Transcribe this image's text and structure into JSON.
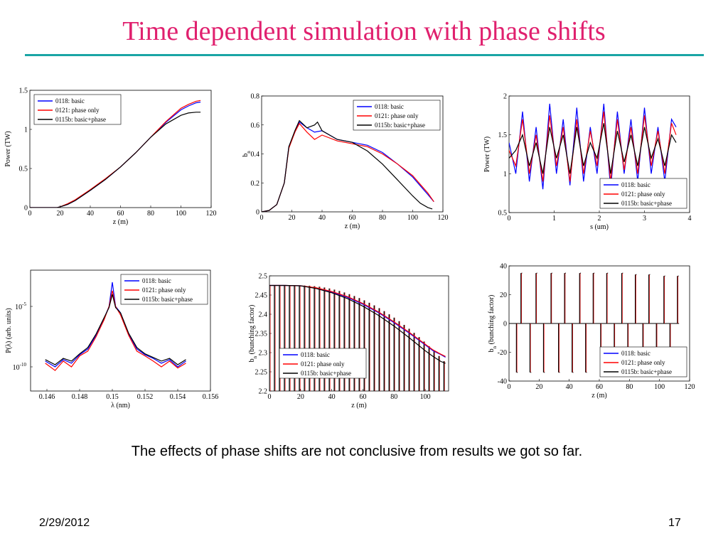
{
  "slide": {
    "title": "Time dependent simulation with phase shifts",
    "caption": "The effects of phase shifts are not conclusive from results we got so far.",
    "date": "2/29/2012",
    "page": "17"
  },
  "colors": {
    "title": "#e0206e",
    "rule": "#1aa5a5",
    "basic": "#0000ff",
    "phase_only": "#ff0000",
    "basic_phase": "#000000"
  },
  "legend_entries": [
    "0118: basic",
    "0121: phase only",
    "0115b: basic+phase"
  ],
  "chart_data": [
    {
      "id": "power-vs-z",
      "type": "line",
      "xlabel": "z (m)",
      "ylabel": "Power (TW)",
      "xlim": [
        0,
        120
      ],
      "ylim": [
        0,
        1.5
      ],
      "xticks": [
        "0",
        "20",
        "40",
        "60",
        "80",
        "100",
        "120"
      ],
      "yticks": [
        "0",
        "0.5",
        "1",
        "1.5"
      ],
      "legend_position": "top-left",
      "series": [
        {
          "name": "0118: basic",
          "color": "#0000ff",
          "x": [
            0,
            10,
            18,
            20,
            25,
            30,
            40,
            50,
            60,
            70,
            80,
            90,
            100,
            105,
            110,
            113
          ],
          "y": [
            0,
            0,
            0,
            0.01,
            0.04,
            0.09,
            0.22,
            0.36,
            0.52,
            0.7,
            0.9,
            1.09,
            1.25,
            1.3,
            1.34,
            1.35
          ]
        },
        {
          "name": "0121: phase only",
          "color": "#ff0000",
          "x": [
            0,
            10,
            18,
            20,
            25,
            30,
            40,
            50,
            60,
            70,
            80,
            90,
            100,
            105,
            110,
            113
          ],
          "y": [
            0,
            0,
            0,
            0.01,
            0.05,
            0.1,
            0.23,
            0.37,
            0.52,
            0.7,
            0.9,
            1.1,
            1.27,
            1.32,
            1.36,
            1.37
          ]
        },
        {
          "name": "0115b: basic+phase",
          "color": "#000000",
          "x": [
            0,
            10,
            18,
            20,
            25,
            30,
            40,
            50,
            60,
            70,
            80,
            90,
            100,
            105,
            110,
            113
          ],
          "y": [
            0,
            0,
            0,
            0.01,
            0.04,
            0.09,
            0.22,
            0.36,
            0.52,
            0.7,
            0.9,
            1.07,
            1.18,
            1.21,
            1.22,
            1.22
          ]
        }
      ]
    },
    {
      "id": "bunching-vs-z",
      "type": "line",
      "xlabel": "z (m)",
      "ylabel": "b",
      "ylabel_subscript": "n",
      "xlim": [
        0,
        120
      ],
      "ylim": [
        0,
        0.8
      ],
      "xticks": [
        "0",
        "20",
        "40",
        "60",
        "80",
        "100",
        "120"
      ],
      "yticks": [
        "0",
        "0.2",
        "0.4",
        "0.6",
        "0.8"
      ],
      "legend_position": "top-right",
      "series": [
        {
          "name": "0118: basic",
          "color": "#0000ff",
          "x": [
            0,
            5,
            10,
            15,
            18,
            22,
            25,
            30,
            35,
            40,
            50,
            60,
            70,
            80,
            90,
            100,
            105,
            110,
            114
          ],
          "y": [
            0,
            0.01,
            0.05,
            0.2,
            0.45,
            0.55,
            0.62,
            0.58,
            0.55,
            0.56,
            0.5,
            0.48,
            0.46,
            0.41,
            0.33,
            0.24,
            0.18,
            0.12,
            0.07
          ]
        },
        {
          "name": "0121: phase only",
          "color": "#ff0000",
          "x": [
            0,
            5,
            10,
            15,
            18,
            22,
            25,
            30,
            35,
            40,
            50,
            60,
            70,
            80,
            90,
            100,
            105,
            110,
            114
          ],
          "y": [
            0,
            0.01,
            0.05,
            0.2,
            0.44,
            0.55,
            0.61,
            0.55,
            0.5,
            0.53,
            0.49,
            0.47,
            0.45,
            0.4,
            0.33,
            0.25,
            0.19,
            0.13,
            0.07
          ]
        },
        {
          "name": "0115b: basic+phase",
          "color": "#000000",
          "x": [
            0,
            5,
            10,
            15,
            18,
            22,
            25,
            30,
            35,
            37,
            40,
            50,
            60,
            70,
            80,
            90,
            100,
            105,
            110,
            113
          ],
          "y": [
            0,
            0.01,
            0.05,
            0.2,
            0.45,
            0.56,
            0.63,
            0.58,
            0.6,
            0.62,
            0.56,
            0.5,
            0.48,
            0.42,
            0.33,
            0.22,
            0.11,
            0.06,
            0.03,
            0.02
          ]
        }
      ]
    },
    {
      "id": "power-vs-s",
      "type": "line",
      "xlabel": "s (um)",
      "ylabel": "Power (TW)",
      "xlim": [
        0,
        4
      ],
      "ylim": [
        0.5,
        2
      ],
      "xticks": [
        "0",
        "1",
        "2",
        "3",
        "4"
      ],
      "yticks": [
        "0.5",
        "1",
        "1.5",
        "2"
      ],
      "legend_position": "bottom-right",
      "series": [
        {
          "name": "0118: basic",
          "color": "#0000ff",
          "x": [
            0,
            0.15,
            0.3,
            0.45,
            0.6,
            0.75,
            0.9,
            1.05,
            1.2,
            1.35,
            1.5,
            1.65,
            1.8,
            1.95,
            2.1,
            2.25,
            2.4,
            2.55,
            2.7,
            2.85,
            3.0,
            3.15,
            3.3,
            3.45,
            3.6,
            3.7
          ],
          "y": [
            1.4,
            1.0,
            1.8,
            0.9,
            1.6,
            0.8,
            1.9,
            1.0,
            1.7,
            0.85,
            1.85,
            0.9,
            1.6,
            1.0,
            1.9,
            0.8,
            1.8,
            1.0,
            1.7,
            0.9,
            1.85,
            1.0,
            1.6,
            0.9,
            1.7,
            1.6
          ]
        },
        {
          "name": "0121: phase only",
          "color": "#ff0000",
          "x": [
            0,
            0.15,
            0.3,
            0.45,
            0.6,
            0.75,
            0.9,
            1.05,
            1.2,
            1.35,
            1.5,
            1.65,
            1.8,
            1.95,
            2.1,
            2.25,
            2.4,
            2.55,
            2.7,
            2.85,
            3.0,
            3.15,
            3.3,
            3.45,
            3.6,
            3.7
          ],
          "y": [
            1.3,
            1.1,
            1.7,
            1.0,
            1.5,
            0.9,
            1.75,
            1.1,
            1.6,
            0.9,
            1.7,
            1.0,
            1.55,
            1.1,
            1.8,
            0.9,
            1.7,
            1.05,
            1.6,
            1.0,
            1.75,
            1.1,
            1.55,
            1.0,
            1.65,
            1.5
          ]
        },
        {
          "name": "0115b: basic+phase",
          "color": "#000000",
          "x": [
            0,
            0.15,
            0.3,
            0.45,
            0.6,
            0.75,
            0.9,
            1.05,
            1.2,
            1.35,
            1.5,
            1.65,
            1.8,
            1.95,
            2.1,
            2.25,
            2.4,
            2.55,
            2.7,
            2.85,
            3.0,
            3.15,
            3.3,
            3.45,
            3.6,
            3.7
          ],
          "y": [
            1.2,
            1.3,
            1.5,
            1.1,
            1.4,
            1.0,
            1.6,
            1.2,
            1.5,
            1.0,
            1.6,
            1.1,
            1.4,
            1.2,
            1.65,
            1.0,
            1.55,
            1.15,
            1.5,
            1.1,
            1.6,
            1.2,
            1.45,
            1.1,
            1.5,
            1.4
          ]
        }
      ]
    },
    {
      "id": "spectrum",
      "type": "line",
      "xlabel": "λ (nm)",
      "ylabel": "P(λ) (arb. units)",
      "yscale": "log",
      "xlim": [
        0.145,
        0.156
      ],
      "ylim": [
        1e-12,
        0.01
      ],
      "xticks": [
        "0.146",
        "0.148",
        "0.15",
        "0.152",
        "0.154",
        "0.156"
      ],
      "yticks": [
        {
          "base": "10",
          "exp": "-5",
          "value": 1e-05
        },
        {
          "base": "10",
          "exp": "-10",
          "value": 1e-10
        }
      ],
      "legend_position": "top-right",
      "series": [
        {
          "name": "0118: basic",
          "color": "#0000ff",
          "x": [
            0.1459,
            0.1465,
            0.147,
            0.1475,
            0.148,
            0.1485,
            0.149,
            0.1495,
            0.1498,
            0.15,
            0.1502,
            0.1505,
            0.151,
            0.1515,
            0.152,
            0.1525,
            0.153,
            0.1535,
            0.154,
            0.1545
          ],
          "y": [
            3e-10,
            1e-10,
            4e-10,
            2e-10,
            1e-09,
            3e-09,
            4e-08,
            1e-06,
            1e-05,
            0.001,
            1e-05,
            3e-06,
            5e-08,
            3e-09,
            1e-09,
            5e-10,
            2e-10,
            4e-10,
            1e-10,
            3e-10
          ]
        },
        {
          "name": "0121: phase only",
          "color": "#ff0000",
          "x": [
            0.1459,
            0.1465,
            0.147,
            0.1475,
            0.148,
            0.1485,
            0.149,
            0.1495,
            0.1498,
            0.15,
            0.1502,
            0.1505,
            0.151,
            0.1515,
            0.152,
            0.1525,
            0.153,
            0.1535,
            0.154,
            0.1545
          ],
          "y": [
            2e-10,
            5e-11,
            3e-10,
            1e-10,
            8e-10,
            2e-09,
            3e-08,
            8e-07,
            1e-05,
            0.0002,
            1e-05,
            2e-06,
            4e-08,
            2e-09,
            8e-10,
            3e-10,
            1e-10,
            3e-10,
            8e-11,
            2e-10
          ]
        },
        {
          "name": "0115b: basic+phase",
          "color": "#000000",
          "x": [
            0.1459,
            0.1465,
            0.147,
            0.1475,
            0.148,
            0.1485,
            0.149,
            0.1495,
            0.1498,
            0.15,
            0.1502,
            0.1505,
            0.151,
            0.1515,
            0.152,
            0.1525,
            0.153,
            0.1535,
            0.154,
            0.1545
          ],
          "y": [
            4e-10,
            1.5e-10,
            5e-10,
            3e-10,
            1.2e-09,
            4e-09,
            5e-08,
            1.2e-06,
            8e-06,
            0.0001,
            8e-06,
            3e-06,
            6e-08,
            4e-09,
            1.2e-09,
            6e-10,
            3e-10,
            5e-10,
            1.5e-10,
            4e-10
          ]
        }
      ]
    },
    {
      "id": "bunching-factor-zoom",
      "type": "line",
      "xlabel": "z (m)",
      "ylabel": "b",
      "ylabel_subscript": "n",
      "ylabel_suffix": "(bunching factor)",
      "xlim": [
        0,
        115
      ],
      "ylim": [
        2.2,
        2.5
      ],
      "xticks": [
        "0",
        "20",
        "40",
        "60",
        "80",
        "100"
      ],
      "yticks": [
        "2.2",
        "2.25",
        "2.3",
        "2.35",
        "2.4",
        "2.45",
        "2.5"
      ],
      "legend_position": "bottom-left",
      "series": [
        {
          "name": "0118: basic",
          "color": "#0000ff",
          "x": [
            0,
            10,
            20,
            30,
            40,
            50,
            60,
            70,
            80,
            90,
            100,
            105,
            110,
            113
          ],
          "y": [
            2.475,
            2.475,
            2.474,
            2.468,
            2.458,
            2.444,
            2.426,
            2.404,
            2.378,
            2.35,
            2.32,
            2.305,
            2.295,
            2.288
          ]
        },
        {
          "name": "0121: phase only",
          "color": "#ff0000",
          "x": [
            0,
            10,
            20,
            30,
            40,
            50,
            60,
            70,
            80,
            90,
            100,
            105,
            110,
            113
          ],
          "y": [
            2.475,
            2.475,
            2.474,
            2.469,
            2.459,
            2.446,
            2.428,
            2.406,
            2.38,
            2.352,
            2.322,
            2.307,
            2.296,
            2.29
          ]
        },
        {
          "name": "0115b: basic+phase",
          "color": "#000000",
          "x": [
            0,
            10,
            20,
            30,
            40,
            50,
            60,
            70,
            80,
            90,
            100,
            105,
            110,
            113
          ],
          "y": [
            2.475,
            2.475,
            2.474,
            2.467,
            2.456,
            2.441,
            2.421,
            2.397,
            2.369,
            2.338,
            2.305,
            2.29,
            2.277,
            2.272
          ]
        }
      ]
    },
    {
      "id": "bunching-factor-pulses",
      "type": "line",
      "xlabel": "z (m)",
      "ylabel": "b",
      "ylabel_subscript": "n",
      "ylabel_suffix": "(bunching factor)",
      "xlim": [
        0,
        120
      ],
      "ylim": [
        -40,
        40
      ],
      "xticks": [
        "0",
        "20",
        "40",
        "60",
        "80",
        "100",
        "120"
      ],
      "yticks": [
        "-40",
        "-20",
        "0",
        "20",
        "40"
      ],
      "legend_position": "bottom-right",
      "pulse_z": [
        5,
        8,
        14,
        18,
        23,
        28,
        33,
        37,
        42,
        47,
        51,
        56,
        61,
        65,
        70,
        75,
        79,
        84,
        89,
        93,
        98,
        103,
        107,
        112
      ],
      "pulse_amplitude": [
        -34,
        35,
        -34,
        35,
        -34,
        35,
        -34,
        35,
        -34,
        35,
        -34,
        35,
        -34,
        35,
        -34,
        35,
        -34,
        34,
        -34,
        34,
        -34,
        33,
        -34,
        33
      ],
      "series": [
        {
          "name": "0118: basic",
          "color": "#0000ff"
        },
        {
          "name": "0121: phase only",
          "color": "#ff0000"
        },
        {
          "name": "0115b: basic+phase",
          "color": "#000000"
        }
      ]
    }
  ]
}
